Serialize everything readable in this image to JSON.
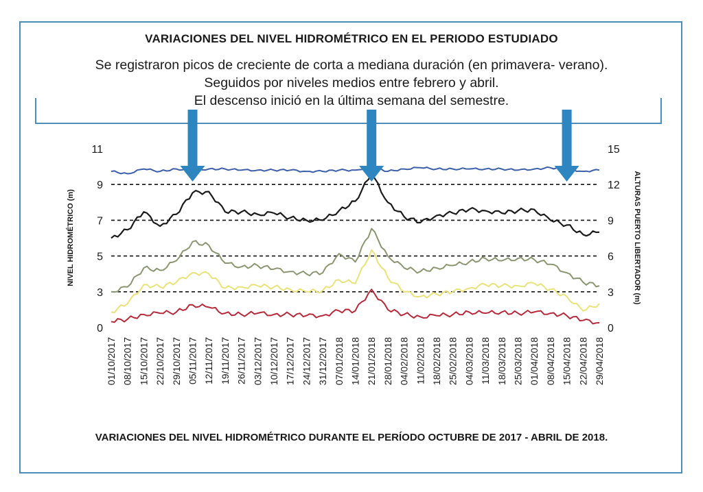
{
  "header": {
    "title": "VARIACIONES DEL NIVEL HIDROMÉTRICO EN EL PERIODO ESTUDIADO",
    "lines": [
      "Se registraron picos de creciente de corta a mediana duración (en primavera- verano).",
      "Seguidos por niveles medios entre febrero y abril.",
      "El descenso inició en la última semana del semestre."
    ]
  },
  "caption": "VARIACIONES DEL NIVEL HIDROMÉTRICO DURANTE EL PERÍODO OCTUBRE DE 2017 - ABRIL DE 2018.",
  "colors": {
    "frame": "#4a8db7",
    "arrow": "#2e86c1",
    "blue_series": "#3b5ea8",
    "black_series": "#1a1a1a",
    "olive_series": "#8a9570",
    "yellow_series": "#e8e27a",
    "red_series": "#b5293a"
  },
  "chart_data": {
    "type": "line",
    "ylabel": "NIVEL HIDROMÉTRICO (m)",
    "y2label": "ALTURAS PUERTO LIBERTADOR (m)",
    "yticks": [
      "0",
      "3",
      "5",
      "7",
      "9",
      "11"
    ],
    "y2ticks": [
      "0",
      "3",
      "6",
      "9",
      "12",
      "15"
    ],
    "ylim": [
      0,
      15
    ],
    "dashed_lines": [
      3,
      6,
      9,
      12
    ],
    "x_labels": [
      "01/10/2017",
      "08/10/2017",
      "15/10/2017",
      "22/10/2017",
      "29/10/2017",
      "05/11/2017",
      "12/11/2017",
      "19/11/2017",
      "26/11/2017",
      "03/12/2017",
      "10/12/2017",
      "17/12/2017",
      "24/12/2017",
      "31/12/2017",
      "07/01/2018",
      "14/01/2018",
      "21/01/2018",
      "28/01/2018",
      "04/02/2018",
      "11/02/2018",
      "18/02/2018",
      "25/02/2018",
      "04/03/2018",
      "11/03/2018",
      "18/03/2018",
      "25/03/2018",
      "01/04/2018",
      "08/04/2018",
      "15/04/2018",
      "22/04/2018",
      "29/04/2018"
    ],
    "arrows_at": [
      5,
      16,
      28
    ],
    "series": [
      {
        "color_key": "blue_series",
        "values": [
          13.1,
          12.9,
          13.3,
          13.1,
          13.3,
          13.2,
          13.3,
          13.3,
          13.2,
          13.2,
          13.2,
          13.2,
          13.1,
          13.1,
          13.2,
          13.2,
          13.5,
          13.1,
          13.3,
          13.4,
          13.3,
          13.3,
          13.3,
          13.3,
          13.3,
          13.2,
          13.3,
          13.4,
          13.3,
          13.1,
          13.2
        ]
      },
      {
        "color_key": "black_series",
        "values": [
          7.5,
          8.2,
          9.7,
          8.5,
          9.5,
          11.3,
          11.4,
          9.7,
          9.7,
          9.5,
          9.6,
          9.2,
          9.0,
          9.0,
          9.8,
          10.6,
          12.9,
          10.5,
          9.3,
          8.8,
          9.4,
          9.6,
          9.9,
          9.8,
          9.6,
          9.8,
          9.9,
          9.0,
          8.6,
          7.8,
          8.0
        ]
      },
      {
        "color_key": "olive_series",
        "values": [
          3.0,
          3.4,
          5.0,
          4.8,
          5.6,
          7.2,
          6.9,
          5.4,
          5.1,
          5.2,
          4.9,
          4.7,
          4.5,
          4.6,
          6.2,
          5.5,
          8.3,
          6.0,
          5.0,
          4.7,
          5.0,
          5.2,
          5.5,
          5.8,
          5.6,
          5.8,
          5.7,
          5.3,
          4.6,
          3.8,
          3.5
        ]
      },
      {
        "color_key": "yellow_series",
        "values": [
          1.3,
          2.0,
          3.6,
          3.4,
          3.8,
          4.6,
          4.5,
          3.3,
          3.4,
          3.5,
          3.4,
          3.2,
          3.0,
          3.1,
          4.0,
          3.7,
          6.5,
          4.2,
          3.0,
          2.6,
          2.8,
          3.0,
          3.3,
          3.6,
          3.5,
          3.5,
          3.7,
          3.2,
          2.6,
          1.4,
          2.0
        ]
      },
      {
        "color_key": "red_series",
        "values": [
          0.5,
          0.7,
          1.1,
          1.2,
          1.3,
          1.9,
          1.7,
          1.2,
          1.1,
          1.2,
          1.1,
          1.1,
          1.0,
          1.0,
          1.4,
          1.4,
          3.2,
          1.5,
          1.1,
          0.9,
          1.0,
          1.1,
          1.3,
          1.2,
          1.3,
          1.2,
          1.3,
          1.2,
          1.0,
          0.6,
          0.4
        ]
      }
    ]
  }
}
